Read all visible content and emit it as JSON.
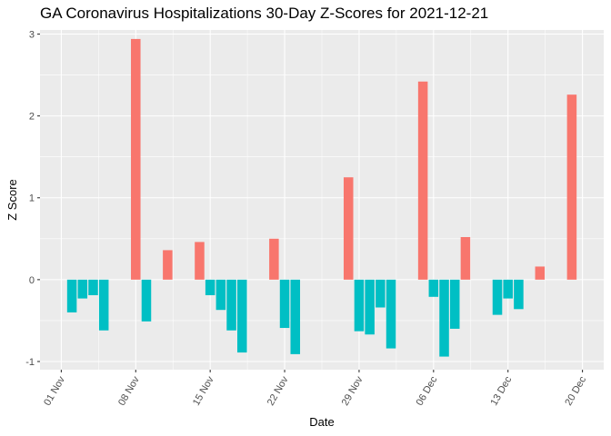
{
  "chart_data": {
    "type": "bar",
    "title": "GA Coronavirus Hospitalizations 30-Day Z-Scores for 2021-12-21",
    "xlabel": "Date",
    "ylabel": "Z Score",
    "ylim": [
      -1.1,
      3.05
    ],
    "y_ticks": [
      -1,
      0,
      1,
      2,
      3
    ],
    "x_ticks": [
      {
        "date": "2021-11-01",
        "label": "01 Nov"
      },
      {
        "date": "2021-11-08",
        "label": "08 Nov"
      },
      {
        "date": "2021-11-15",
        "label": "15 Nov"
      },
      {
        "date": "2021-11-22",
        "label": "22 Nov"
      },
      {
        "date": "2021-11-29",
        "label": "29 Nov"
      },
      {
        "date": "2021-12-06",
        "label": "06 Dec"
      },
      {
        "date": "2021-12-13",
        "label": "13 Dec"
      },
      {
        "date": "2021-12-20",
        "label": "20 Dec"
      }
    ],
    "xlim": [
      "2021-10-30",
      "2021-12-22"
    ],
    "grid": true,
    "legend": "none",
    "colors": {
      "positive": "#F8766D",
      "negative": "#00BFC4",
      "panel": "#EBEBEB"
    },
    "bars": [
      {
        "date": "2021-11-02",
        "value": -0.4
      },
      {
        "date": "2021-11-03",
        "value": -0.23
      },
      {
        "date": "2021-11-04",
        "value": -0.19
      },
      {
        "date": "2021-11-05",
        "value": -0.62
      },
      {
        "date": "2021-11-08",
        "value": 2.94
      },
      {
        "date": "2021-11-09",
        "value": -0.51
      },
      {
        "date": "2021-11-11",
        "value": 0.36
      },
      {
        "date": "2021-11-14",
        "value": 0.46
      },
      {
        "date": "2021-11-15",
        "value": -0.19
      },
      {
        "date": "2021-11-16",
        "value": -0.37
      },
      {
        "date": "2021-11-17",
        "value": -0.62
      },
      {
        "date": "2021-11-18",
        "value": -0.89
      },
      {
        "date": "2021-11-21",
        "value": 0.5
      },
      {
        "date": "2021-11-22",
        "value": -0.59
      },
      {
        "date": "2021-11-23",
        "value": -0.91
      },
      {
        "date": "2021-11-28",
        "value": 1.25
      },
      {
        "date": "2021-11-29",
        "value": -0.63
      },
      {
        "date": "2021-11-30",
        "value": -0.67
      },
      {
        "date": "2021-12-01",
        "value": -0.34
      },
      {
        "date": "2021-12-02",
        "value": -0.84
      },
      {
        "date": "2021-12-05",
        "value": 2.42
      },
      {
        "date": "2021-12-06",
        "value": -0.21
      },
      {
        "date": "2021-12-07",
        "value": -0.94
      },
      {
        "date": "2021-12-08",
        "value": -0.6
      },
      {
        "date": "2021-12-09",
        "value": 0.52
      },
      {
        "date": "2021-12-12",
        "value": -0.43
      },
      {
        "date": "2021-12-13",
        "value": -0.23
      },
      {
        "date": "2021-12-14",
        "value": -0.36
      },
      {
        "date": "2021-12-16",
        "value": 0.16
      },
      {
        "date": "2021-12-19",
        "value": 2.26
      }
    ]
  }
}
